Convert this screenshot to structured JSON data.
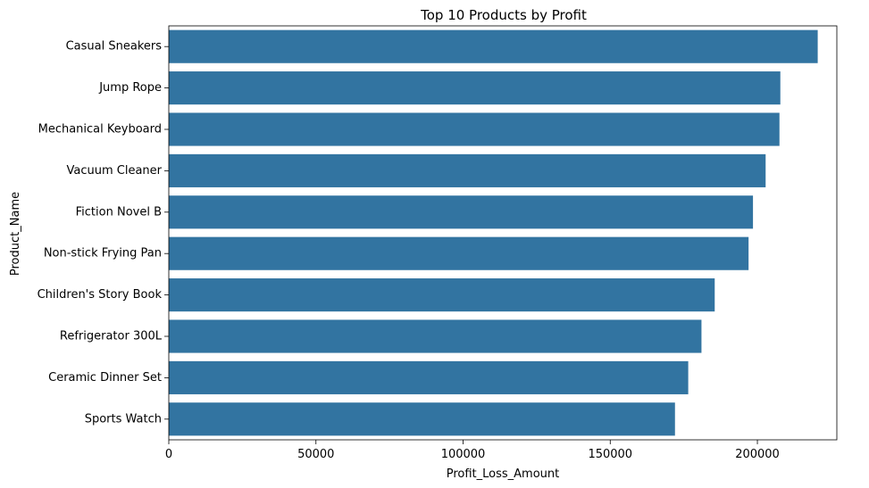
{
  "chart_data": {
    "type": "bar",
    "orientation": "horizontal",
    "title": "Top 10 Products by Profit",
    "xlabel": "Profit_Loss_Amount",
    "ylabel": "Product_Name",
    "categories": [
      "Casual Sneakers",
      "Jump Rope",
      "Mechanical Keyboard",
      "Vacuum Cleaner",
      "Fiction Novel B",
      "Non-stick Frying Pan",
      "Children's Story Book",
      "Refrigerator 300L",
      "Ceramic Dinner Set",
      "Sports Watch"
    ],
    "values": [
      220500,
      207800,
      207500,
      202800,
      198500,
      197000,
      185500,
      181000,
      176500,
      172000
    ],
    "xlim": [
      0,
      227000
    ],
    "xticks": [
      0,
      50000,
      100000,
      150000,
      200000
    ],
    "xtick_labels": [
      "0",
      "50000",
      "100000",
      "150000",
      "200000"
    ],
    "grid": false,
    "colors": {
      "bar": "#3274a1",
      "axis": "#000000"
    }
  }
}
